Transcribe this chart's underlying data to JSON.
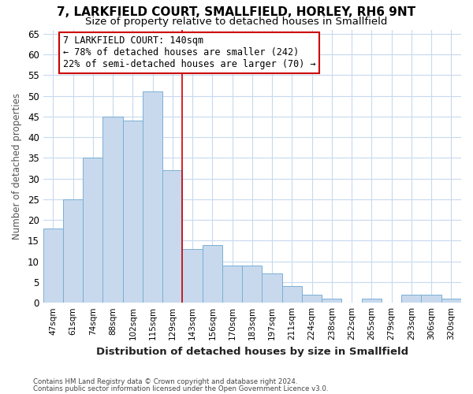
{
  "title1": "7, LARKFIELD COURT, SMALLFIELD, HORLEY, RH6 9NT",
  "title2": "Size of property relative to detached houses in Smallfield",
  "xlabel": "Distribution of detached houses by size in Smallfield",
  "ylabel": "Number of detached properties",
  "categories": [
    "47sqm",
    "61sqm",
    "74sqm",
    "88sqm",
    "102sqm",
    "115sqm",
    "129sqm",
    "143sqm",
    "156sqm",
    "170sqm",
    "183sqm",
    "197sqm",
    "211sqm",
    "224sqm",
    "238sqm",
    "252sqm",
    "265sqm",
    "279sqm",
    "293sqm",
    "306sqm",
    "320sqm"
  ],
  "values": [
    18,
    25,
    35,
    45,
    44,
    51,
    32,
    13,
    14,
    9,
    9,
    7,
    4,
    2,
    1,
    0,
    1,
    0,
    2,
    2,
    1
  ],
  "bar_color": "#c8d9ee",
  "bar_edge_color": "#7aafd4",
  "reference_line_x": 6.5,
  "annotation_text": "7 LARKFIELD COURT: 140sqm\n← 78% of detached houses are smaller (242)\n22% of semi-detached houses are larger (70) →",
  "annotation_box_facecolor": "#ffffff",
  "annotation_box_edgecolor": "#cc0000",
  "ylim": [
    0,
    66
  ],
  "yticks": [
    0,
    5,
    10,
    15,
    20,
    25,
    30,
    35,
    40,
    45,
    50,
    55,
    60,
    65
  ],
  "footer1": "Contains HM Land Registry data © Crown copyright and database right 2024.",
  "footer2": "Contains public sector information licensed under the Open Government Licence v3.0.",
  "bg_color": "#ffffff",
  "plot_bg_color": "#ffffff",
  "grid_color": "#c8d9ee",
  "title_fontsize": 11,
  "subtitle_fontsize": 9.5
}
